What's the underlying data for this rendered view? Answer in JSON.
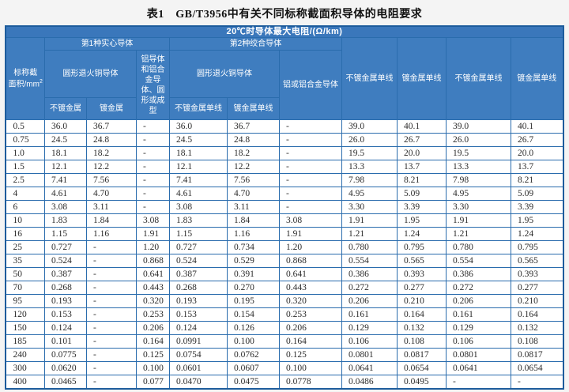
{
  "title": "表1　GB/T3956中有关不同标称截面积导体的电阻要求",
  "colors": {
    "header_bg": "#3f7dbf",
    "header_bg_top": "#3a77bb",
    "grid_border": "#2a6cad",
    "outer_border": "#1d5c9c",
    "data_text": "#2b2b2b",
    "page_bg": "#f4f4f4"
  },
  "table": {
    "header": {
      "max_resistance": "20℃时导体最大电阻/(Ω/km)",
      "area_line1": "标称截",
      "area_line2": "面积/mm",
      "area_sup": "2",
      "group_solid": "第1种实心导体",
      "group_stranded": "第2种绞合导体",
      "solid_copper": "圆形退火铜导体",
      "solid_uncoated": "不镀金属",
      "solid_coated": "镀金属",
      "solid_aluminium": "铝导体和铝合金导体、圆形或成型",
      "stranded_copper": "圆形退火铜导体",
      "stranded_uncoated": "不镀金属单线",
      "stranded_coated": "镀金属单线",
      "stranded_aluminium": "铝或铝合金导体",
      "col8": "不镀金属单线",
      "col9": "镀金属单线",
      "col10": "不镀金属单线",
      "col11": "镀金属单线"
    },
    "rows": [
      [
        "0.5",
        "36.0",
        "36.7",
        "-",
        "36.0",
        "36.7",
        "-",
        "39.0",
        "40.1",
        "39.0",
        "40.1"
      ],
      [
        "0.75",
        "24.5",
        "24.8",
        "-",
        "24.5",
        "24.8",
        "-",
        "26.0",
        "26.7",
        "26.0",
        "26.7"
      ],
      [
        "1.0",
        "18.1",
        "18.2",
        "-",
        "18.1",
        "18.2",
        "-",
        "19.5",
        "20.0",
        "19.5",
        "20.0"
      ],
      [
        "1.5",
        "12.1",
        "12.2",
        "-",
        "12.1",
        "12.2",
        "-",
        "13.3",
        "13.7",
        "13.3",
        "13.7"
      ],
      [
        "2.5",
        "7.41",
        "7.56",
        "-",
        "7.41",
        "7.56",
        "-",
        "7.98",
        "8.21",
        "7.98",
        "8.21"
      ],
      [
        "4",
        "4.61",
        "4.70",
        "-",
        "4.61",
        "4.70",
        "-",
        "4.95",
        "5.09",
        "4.95",
        "5.09"
      ],
      [
        "6",
        "3.08",
        "3.11",
        "-",
        "3.08",
        "3.11",
        "-",
        "3.30",
        "3.39",
        "3.30",
        "3.39"
      ],
      [
        "10",
        "1.83",
        "1.84",
        "3.08",
        "1.83",
        "1.84",
        "3.08",
        "1.91",
        "1.95",
        "1.91",
        "1.95"
      ],
      [
        "16",
        "1.15",
        "1.16",
        "1.91",
        "1.15",
        "1.16",
        "1.91",
        "1.21",
        "1.24",
        "1.21",
        "1.24"
      ],
      [
        "25",
        "0.727",
        "-",
        "1.20",
        "0.727",
        "0.734",
        "1.20",
        "0.780",
        "0.795",
        "0.780",
        "0.795"
      ],
      [
        "35",
        "0.524",
        "-",
        "0.868",
        "0.524",
        "0.529",
        "0.868",
        "0.554",
        "0.565",
        "0.554",
        "0.565"
      ],
      [
        "50",
        "0.387",
        "-",
        "0.641",
        "0.387",
        "0.391",
        "0.641",
        "0.386",
        "0.393",
        "0.386",
        "0.393"
      ],
      [
        "70",
        "0.268",
        "-",
        "0.443",
        "0.268",
        "0.270",
        "0.443",
        "0.272",
        "0.277",
        "0.272",
        "0.277"
      ],
      [
        "95",
        "0.193",
        "-",
        "0.320",
        "0.193",
        "0.195",
        "0.320",
        "0.206",
        "0.210",
        "0.206",
        "0.210"
      ],
      [
        "120",
        "0.153",
        "-",
        "0.253",
        "0.153",
        "0.154",
        "0.253",
        "0.161",
        "0.164",
        "0.161",
        "0.164"
      ],
      [
        "150",
        "0.124",
        "-",
        "0.206",
        "0.124",
        "0.126",
        "0.206",
        "0.129",
        "0.132",
        "0.129",
        "0.132"
      ],
      [
        "185",
        "0.101",
        "-",
        "0.164",
        "0.0991",
        "0.100",
        "0.164",
        "0.106",
        "0.108",
        "0.106",
        "0.108"
      ],
      [
        "240",
        "0.0775",
        "-",
        "0.125",
        "0.0754",
        "0.0762",
        "0.125",
        "0.0801",
        "0.0817",
        "0.0801",
        "0.0817"
      ],
      [
        "300",
        "0.0620",
        "-",
        "0.100",
        "0.0601",
        "0.0607",
        "0.100",
        "0.0641",
        "0.0654",
        "0.0641",
        "0.0654"
      ],
      [
        "400",
        "0.0465",
        "-",
        "0.077",
        "0.0470",
        "0.0475",
        "0.0778",
        "0.0486",
        "0.0495",
        "-",
        "-"
      ]
    ]
  }
}
